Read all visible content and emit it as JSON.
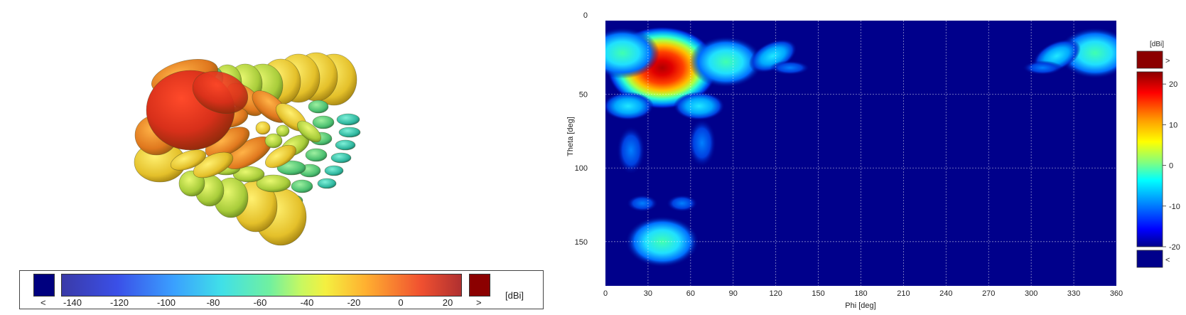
{
  "chart_data": [
    {
      "type": "3d-surface",
      "colorbar": {
        "unit": "[dBi]",
        "ticks": [
          "-140",
          "-120",
          "-100",
          "-80",
          "-60",
          "-40",
          "-20",
          "0",
          "20"
        ],
        "under_label": "<",
        "over_label": ">",
        "under_color": "#00007f",
        "over_color": "#8b0000"
      }
    },
    {
      "type": "heatmap",
      "xlabel": "Phi [deg]",
      "ylabel": "Theta [deg]",
      "xlim": [
        0,
        360
      ],
      "ylim": [
        0,
        180
      ],
      "xticks": [
        "0",
        "30",
        "60",
        "90",
        "120",
        "150",
        "180",
        "210",
        "240",
        "270",
        "300",
        "330",
        "360"
      ],
      "yticks": [
        "0",
        "50",
        "100",
        "150"
      ],
      "grid": true,
      "colorbar": {
        "unit": "[dBi]",
        "ticks": [
          "20",
          "10",
          "0",
          "-10",
          "-20"
        ],
        "range": [
          -20,
          23
        ],
        "over_label": ">",
        "under_label": "<",
        "over_color": "#8b0000",
        "under_color": "#00008b"
      },
      "lobes": [
        {
          "phi": 40,
          "theta": 32,
          "peak_db": 23
        },
        {
          "phi": 12,
          "theta": 22,
          "peak_db": -2
        },
        {
          "phi": 85,
          "theta": 28,
          "peak_db": -3
        },
        {
          "phi": 118,
          "theta": 24,
          "peak_db": -8
        },
        {
          "phi": 130,
          "theta": 32,
          "peak_db": -14
        },
        {
          "phi": 16,
          "theta": 58,
          "peak_db": -6
        },
        {
          "phi": 66,
          "theta": 58,
          "peak_db": -6
        },
        {
          "phi": 18,
          "theta": 88,
          "peak_db": -16
        },
        {
          "phi": 68,
          "theta": 83,
          "peak_db": -15
        },
        {
          "phi": 26,
          "theta": 124,
          "peak_db": -18
        },
        {
          "phi": 54,
          "theta": 124,
          "peak_db": -18
        },
        {
          "phi": 40,
          "theta": 150,
          "peak_db": -4
        },
        {
          "phi": 345,
          "theta": 22,
          "peak_db": -4
        },
        {
          "phi": 318,
          "theta": 24,
          "peak_db": -10
        },
        {
          "phi": 308,
          "theta": 32,
          "peak_db": -16
        }
      ]
    }
  ]
}
